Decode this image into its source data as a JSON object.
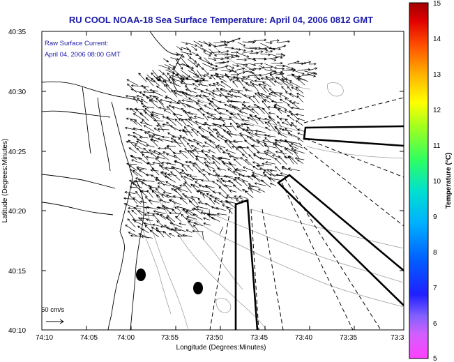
{
  "title": "RU COOL  NOAA-18  Sea Surface Temperature:  April 04, 2006 0812 GMT",
  "annotation": {
    "line1": "Raw Surface Current:",
    "line2": "April 04, 2006 08:00 GMT"
  },
  "axes": {
    "xlabel": "Longitude (Degrees:Minutes)",
    "ylabel": "Latitude (Degrees:Minutes)",
    "x_ticks": [
      "74:10",
      "74:05",
      "74:00",
      "73:55",
      "73:50",
      "73:45",
      "73:40",
      "73:35",
      "73:3"
    ],
    "y_ticks": [
      "40:35",
      "40:30",
      "40:25",
      "40:20",
      "40:15",
      "40:10"
    ]
  },
  "scale": {
    "label": "50 cm/s"
  },
  "colorbar": {
    "label": "Temperature (°C)",
    "ticks": [
      "15",
      "14",
      "13",
      "12",
      "11",
      "10",
      "9",
      "8",
      "7",
      "6",
      "5"
    ]
  },
  "colors": {
    "title": "#1a1aa8",
    "coast": "#000000",
    "contour": "#a0a0a0",
    "arrows": "#000000"
  }
}
